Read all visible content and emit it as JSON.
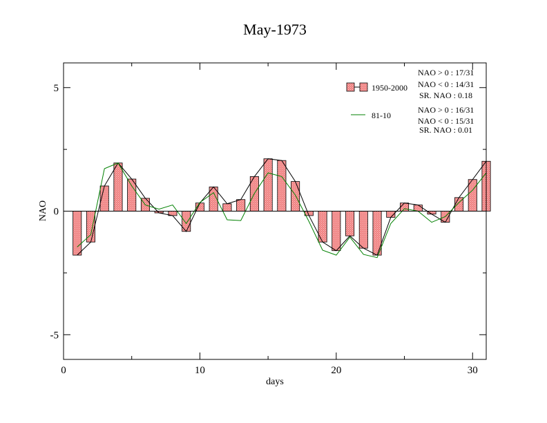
{
  "chart_data": {
    "type": "bar",
    "title": "May-1973",
    "xlabel": "days",
    "ylabel": "NAO",
    "xlim": [
      0,
      31
    ],
    "ylim": [
      -6,
      6
    ],
    "xticks": [
      0,
      10,
      20,
      30
    ],
    "yticks": [
      -5,
      0,
      5
    ],
    "x": [
      1,
      2,
      3,
      4,
      5,
      6,
      7,
      8,
      9,
      10,
      11,
      12,
      13,
      14,
      15,
      16,
      17,
      18,
      19,
      20,
      21,
      22,
      23,
      24,
      25,
      26,
      27,
      28,
      29,
      30,
      31
    ],
    "series": [
      {
        "name": "1950-2000",
        "kind": "bar+line",
        "bar_color": "#f08080",
        "values": [
          -1.78,
          -1.25,
          1.02,
          1.95,
          1.3,
          0.52,
          -0.07,
          -0.18,
          -0.82,
          0.33,
          0.98,
          0.3,
          0.47,
          1.4,
          2.12,
          2.05,
          1.2,
          -0.18,
          -1.25,
          -1.6,
          -1.0,
          -1.5,
          -1.78,
          -0.25,
          0.33,
          0.25,
          -0.12,
          -0.45,
          0.55,
          1.28,
          2.02
        ]
      },
      {
        "name": "81-10",
        "kind": "line",
        "color": "#008000",
        "values": [
          -1.45,
          -0.95,
          1.72,
          1.95,
          1.02,
          0.25,
          0.08,
          0.25,
          -0.5,
          0.35,
          0.75,
          -0.35,
          -0.38,
          0.72,
          1.55,
          1.4,
          0.65,
          -0.42,
          -1.58,
          -1.78,
          -1.05,
          -1.75,
          -1.88,
          -0.5,
          0.1,
          0.0,
          -0.45,
          -0.22,
          0.35,
          0.85,
          1.55
        ]
      }
    ],
    "stats": [
      [
        "NAO > 0 : 17/31",
        "NAO < 0 : 14/31",
        "SR. NAO :  0.18"
      ],
      [
        "NAO > 0 : 16/31",
        "NAO < 0 : 15/31",
        "SR. NAO :  0.01"
      ]
    ]
  }
}
